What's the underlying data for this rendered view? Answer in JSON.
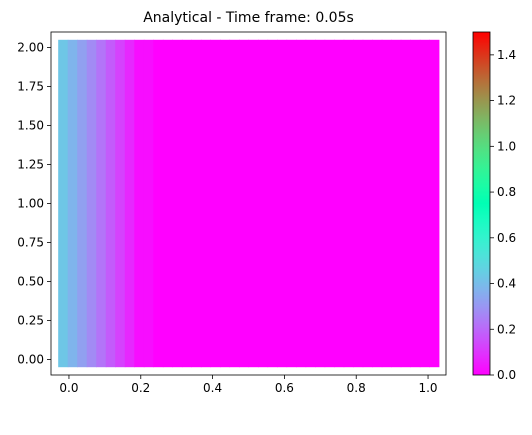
{
  "chart_data": {
    "type": "heatmap",
    "title": "Analytical - Time frame: 0.05s",
    "xlabel": "",
    "ylabel": "",
    "xlim": [
      -0.05,
      1.05
    ],
    "ylim": [
      -0.1,
      2.1
    ],
    "x_ticks": [
      0.0,
      0.2,
      0.4,
      0.6,
      0.8,
      1.0
    ],
    "x_tick_labels": [
      "0.0",
      "0.2",
      "0.4",
      "0.6",
      "0.8",
      "1.0"
    ],
    "y_ticks": [
      0.0,
      0.25,
      0.5,
      0.75,
      1.0,
      1.25,
      1.5,
      1.75,
      2.0
    ],
    "y_tick_labels": [
      "0.00",
      "0.25",
      "0.50",
      "0.75",
      "1.00",
      "1.25",
      "1.50",
      "1.75",
      "2.00"
    ],
    "colormap": "rainbow",
    "colorbar": {
      "vmin": 0.0,
      "vmax": 1.5,
      "ticks": [
        0.0,
        0.2,
        0.4,
        0.6,
        0.8,
        1.0,
        1.2,
        1.4
      ],
      "tick_labels": [
        "0.0",
        "0.2",
        "0.4",
        "0.6",
        "0.8",
        "1.0",
        "1.2",
        "1.4"
      ]
    },
    "field_extent": {
      "x": [
        -0.03,
        1.03
      ],
      "y": [
        -0.05,
        2.05
      ]
    },
    "profile": {
      "x": [
        -0.03,
        0.0,
        0.025,
        0.05,
        0.075,
        0.1,
        0.125,
        0.15,
        0.175,
        0.2,
        0.25,
        1.03
      ],
      "value": [
        0.43,
        0.39,
        0.35,
        0.3,
        0.25,
        0.2,
        0.15,
        0.11,
        0.07,
        0.04,
        0.01,
        0.0
      ]
    },
    "grid": false
  }
}
